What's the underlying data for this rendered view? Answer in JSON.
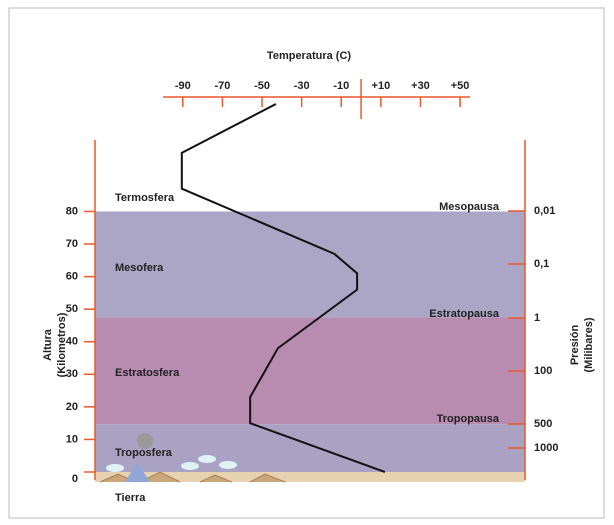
{
  "chart_data": {
    "type": "line",
    "title": "Temperatura (C)",
    "y_label": [
      "Altura",
      "(Kilometros)"
    ],
    "y2_label": [
      "Presión",
      "(Milibares)"
    ],
    "x": [
      -43,
      -90.5,
      -90.5,
      -13.5,
      -2,
      -2,
      -42,
      -56,
      -56,
      12
    ],
    "values": [
      113,
      98,
      87,
      67,
      61,
      56,
      38,
      23,
      15,
      0
    ],
    "color": "#111111",
    "axis_color": "#e8592c",
    "xlim": [
      -100,
      55
    ],
    "xticks": [
      -90,
      -70,
      -50,
      -30,
      -10,
      {
        "value": 10,
        "label": "+10"
      },
      {
        "value": 30,
        "label": "+30"
      },
      {
        "value": 50,
        "label": "+50"
      }
    ],
    "ylim": [
      0,
      113
    ],
    "yticks": [
      0,
      10,
      20,
      30,
      40,
      50,
      60,
      70,
      80
    ],
    "pressure_labels": [
      "0,01",
      "0,1",
      "1",
      "100",
      "500",
      "1000"
    ],
    "bands": [
      {
        "from": 47.5,
        "to": 80,
        "color": "#aba6c6"
      },
      {
        "from": 14.7,
        "to": 47.5,
        "color": "#b88bb0"
      },
      {
        "from": 0,
        "to": 14.7,
        "color": "#aaa2c2"
      }
    ],
    "layers": [
      "Termosfera",
      "Mesofera",
      "Estratosfera",
      "Troposfera",
      "Tierra"
    ],
    "boundaries": [
      "Mesopausa",
      "Estratopausa",
      "Tropopausa"
    ]
  }
}
